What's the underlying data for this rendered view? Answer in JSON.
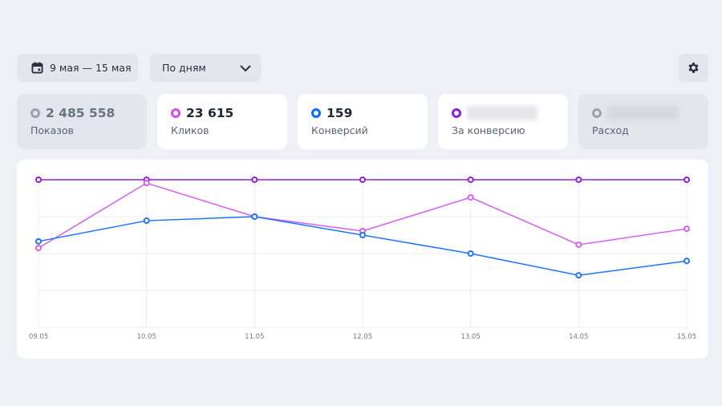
{
  "toolbar": {
    "date_range": "9 мая — 15 мая",
    "grouping": "По дням",
    "icons": {
      "calendar": "calendar-icon",
      "chevron": "chevron-down-icon",
      "settings": "gear-icon"
    }
  },
  "cards": [
    {
      "value": "2 485 558",
      "label": "Показов",
      "color": "#9ca1ab",
      "active": false
    },
    {
      "value": "23 615",
      "label": "Кликов",
      "color": "#d34df0",
      "active": true
    },
    {
      "value": "159",
      "label": "Конверсий",
      "color": "#0a6cff",
      "active": true
    },
    {
      "value": "",
      "label": "За конверсию",
      "color": "#8b1ee8",
      "active": true,
      "blurred": true
    },
    {
      "value": "",
      "label": "Расход",
      "color": "#9ca1ab",
      "active": false,
      "blurred": true
    }
  ],
  "chart_data": {
    "type": "line",
    "categories": [
      "09.05",
      "10.05",
      "11.05",
      "12.05",
      "13.05",
      "14.05",
      "15.05"
    ],
    "ylim": [
      0,
      4
    ],
    "grid": true,
    "series": [
      {
        "key": "za_konversiyu",
        "color": "#8b1ee8",
        "values": [
          4,
          4,
          4,
          4,
          4,
          4,
          4
        ]
      },
      {
        "key": "kliki",
        "color": "#d65cf5",
        "values": [
          2.15,
          3.91,
          3.0,
          2.61,
          3.52,
          2.24,
          2.67
        ]
      },
      {
        "key": "konversii",
        "color": "#1a75ff",
        "values": [
          2.33,
          2.89,
          3.0,
          2.5,
          2.0,
          1.41,
          1.8
        ]
      }
    ]
  }
}
